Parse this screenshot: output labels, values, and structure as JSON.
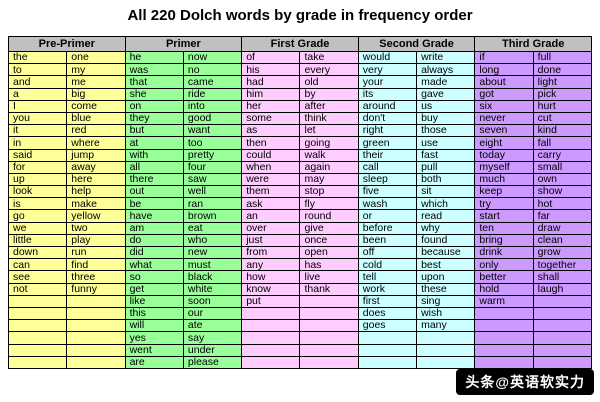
{
  "title": "All 220 Dolch words by grade in frequency order",
  "watermark": {
    "text": "头条@英语软实力",
    "bg": "#000000",
    "fg": "#FFFFFF"
  },
  "table": {
    "header_bg": "#C0C0C0",
    "border_color": "#000000",
    "row_count": 26,
    "columns": [
      {
        "label": "Pre-Primer",
        "color": "#FFFF99",
        "words_left": [
          "the",
          "to",
          "and",
          "a",
          "I",
          "you",
          "it",
          "in",
          "said",
          "for",
          "up",
          "look",
          "is",
          "go",
          "we",
          "little",
          "down",
          "can",
          "see",
          "not"
        ],
        "words_right": [
          "one",
          "my",
          "me",
          "big",
          "come",
          "blue",
          "red",
          "where",
          "jump",
          "away",
          "here",
          "help",
          "make",
          "yellow",
          "two",
          "play",
          "run",
          "find",
          "three",
          "funny"
        ]
      },
      {
        "label": "Primer",
        "color": "#99FF99",
        "words_left": [
          "he",
          "was",
          "that",
          "she",
          "on",
          "they",
          "but",
          "at",
          "with",
          "all",
          "there",
          "out",
          "be",
          "have",
          "am",
          "do",
          "did",
          "what",
          "so",
          "get",
          "like",
          "this",
          "will",
          "yes",
          "went",
          "are"
        ],
        "words_right": [
          "now",
          "no",
          "came",
          "ride",
          "into",
          "good",
          "want",
          "too",
          "pretty",
          "four",
          "saw",
          "well",
          "ran",
          "brown",
          "eat",
          "who",
          "new",
          "must",
          "black",
          "white",
          "soon",
          "our",
          "ate",
          "say",
          "under",
          "please"
        ]
      },
      {
        "label": "First Grade",
        "color": "#FFCCFF",
        "words_left": [
          "of",
          "his",
          "had",
          "him",
          "her",
          "some",
          "as",
          "then",
          "could",
          "when",
          "were",
          "them",
          "ask",
          "an",
          "over",
          "just",
          "from",
          "any",
          "how",
          "know",
          "put"
        ],
        "words_right": [
          "take",
          "every",
          "old",
          "by",
          "after",
          "think",
          "let",
          "going",
          "walk",
          "again",
          "may",
          "stop",
          "fly",
          "round",
          "give",
          "once",
          "open",
          "has",
          "live",
          "thank"
        ]
      },
      {
        "label": "Second Grade",
        "color": "#CCFFFF",
        "words_left": [
          "would",
          "very",
          "your",
          "its",
          "around",
          "don't",
          "right",
          "green",
          "their",
          "call",
          "sleep",
          "five",
          "wash",
          "or",
          "before",
          "been",
          "off",
          "cold",
          "tell",
          "work",
          "first",
          "does",
          "goes"
        ],
        "words_right": [
          "write",
          "always",
          "made",
          "gave",
          "us",
          "buy",
          "those",
          "use",
          "fast",
          "pull",
          "both",
          "sit",
          "which",
          "read",
          "why",
          "found",
          "because",
          "best",
          "upon",
          "these",
          "sing",
          "wish",
          "many"
        ]
      },
      {
        "label": "Third Grade",
        "color": "#CC99FF",
        "words_left": [
          "if",
          "long",
          "about",
          "got",
          "six",
          "never",
          "seven",
          "eight",
          "today",
          "myself",
          "much",
          "keep",
          "try",
          "start",
          "ten",
          "bring",
          "drink",
          "only",
          "better",
          "hold",
          "warm"
        ],
        "words_right": [
          "full",
          "done",
          "light",
          "pick",
          "hurt",
          "cut",
          "kind",
          "fall",
          "carry",
          "small",
          "own",
          "show",
          "hot",
          "far",
          "draw",
          "clean",
          "grow",
          "together",
          "shall",
          "laugh"
        ]
      }
    ]
  }
}
